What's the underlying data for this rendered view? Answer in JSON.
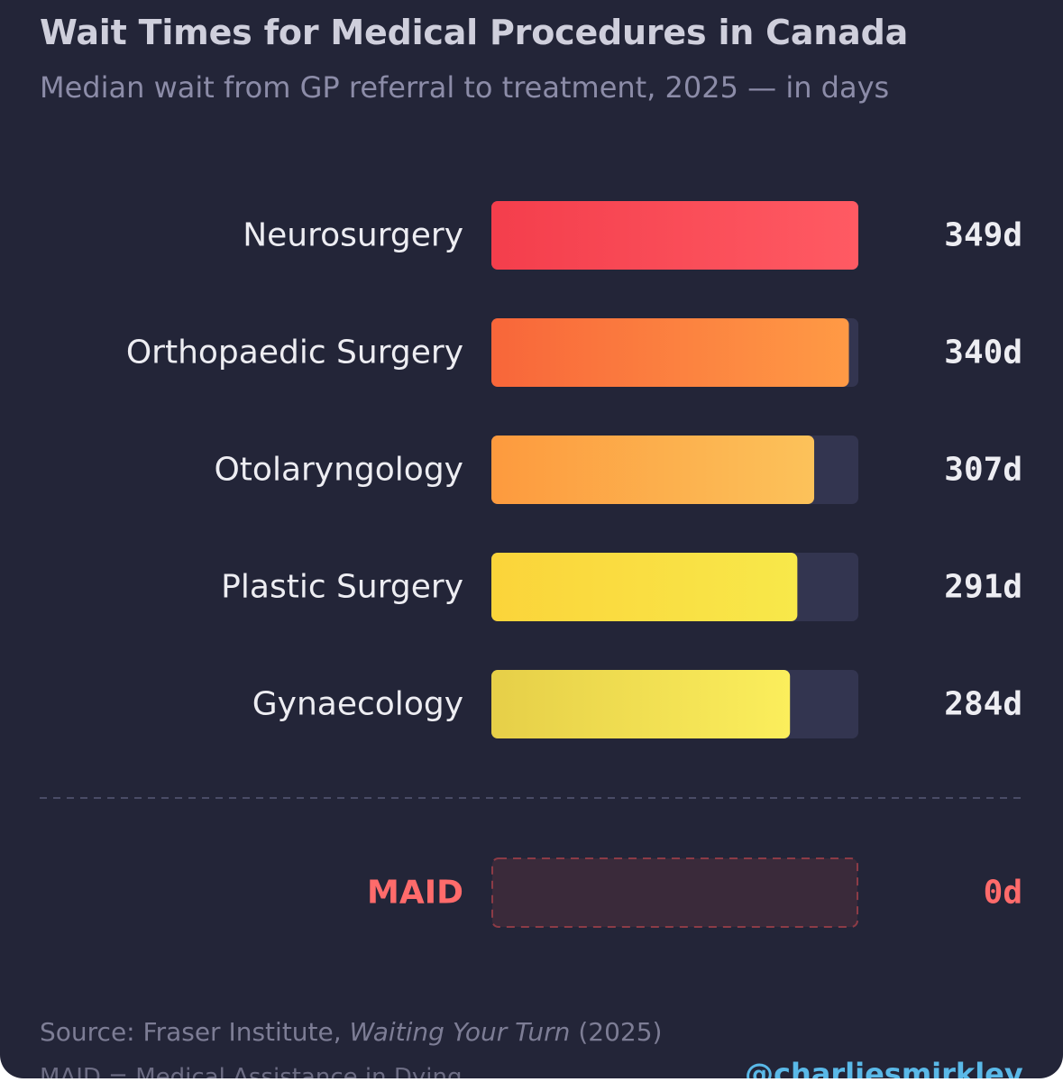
{
  "chart_data": {
    "type": "bar",
    "orientation": "horizontal",
    "title": "Wait Times for Medical Procedures in Canada",
    "subtitle": "Median wait from GP referral to treatment, 2025 — in days",
    "unit_suffix": "d",
    "xlim": [
      0,
      349
    ],
    "categories": [
      "Neurosurgery",
      "Orthopaedic Surgery",
      "Otolaryngology",
      "Plastic Surgery",
      "Gynaecology"
    ],
    "values": [
      349,
      340,
      307,
      291,
      284
    ],
    "value_labels": [
      "349d",
      "340d",
      "307d",
      "291d",
      "284d"
    ],
    "bar_colors": [
      [
        "#f43e4c",
        "#ff5a63"
      ],
      [
        "#f8663a",
        "#ff9a45"
      ],
      [
        "#fd9a3e",
        "#fcc25a"
      ],
      [
        "#fbd43a",
        "#f8e84a"
      ],
      [
        "#e6cf48",
        "#fbee5c"
      ]
    ],
    "highlight": {
      "category": "MAID",
      "value": 0,
      "value_label": "0d",
      "color": "#ff6b6b"
    }
  },
  "source": {
    "prefix": "Source: Fraser Institute, ",
    "publication": "Waiting Your Turn",
    "suffix": " (2025)"
  },
  "footnote": "MAID = Medical Assistance in Dying",
  "handle": "@charliesmirkley",
  "colors": {
    "background": "#232538",
    "track": "#333550",
    "text": "#ededf2"
  }
}
